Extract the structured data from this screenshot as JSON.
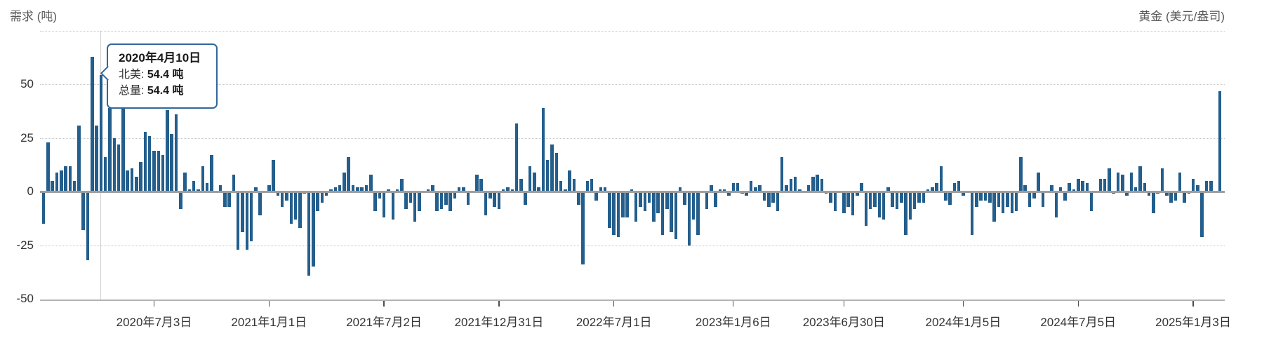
{
  "header": {
    "left_axis_title": "需求 (吨)",
    "right_axis_title": "黄金 (美元/盎司)"
  },
  "tooltip": {
    "date": "2020年4月10日",
    "series_label": "北美: ",
    "series_value": "54.4 吨",
    "total_label": "总量: ",
    "total_value": "54.4 吨"
  },
  "colors": {
    "bar": "#235e8c",
    "tooltip_border": "#33669a",
    "gridline": "#c8c8c8",
    "zero_line": "#9e9e9e",
    "hover_line": "#d2d2d2",
    "axis_title_text": "#58595b",
    "tick_text": "#333333"
  },
  "chart_data": {
    "type": "bar",
    "title": "",
    "ylabel": "需求 (吨)",
    "ylabel_right": "黄金 (美元/盎司)",
    "unit": "吨",
    "x_unit": "week",
    "ylim": [
      -50,
      75
    ],
    "grid": "dotted-horizontal",
    "legend_position": "none",
    "y_ticks": [
      {
        "label": "50",
        "value": 50
      },
      {
        "label": "25",
        "value": 25
      },
      {
        "label": "0",
        "value": 0
      },
      {
        "label": "-25",
        "value": -25
      },
      {
        "label": "-50",
        "value": -50
      }
    ],
    "gridline_values": [
      75,
      50,
      25,
      -25
    ],
    "x_ticks": [
      {
        "label": "2020年7月3日",
        "week_index": 25
      },
      {
        "label": "2021年1月1日",
        "week_index": 51
      },
      {
        "label": "2021年7月2日",
        "week_index": 77
      },
      {
        "label": "2021年12月31日",
        "week_index": 103
      },
      {
        "label": "2022年7月1日",
        "week_index": 129
      },
      {
        "label": "2023年1月6日",
        "week_index": 156
      },
      {
        "label": "2023年6月30日",
        "week_index": 181
      },
      {
        "label": "2024年1月5日",
        "week_index": 208
      },
      {
        "label": "2024年7月5日",
        "week_index": 234
      },
      {
        "label": "2025年1月3日",
        "week_index": 260
      }
    ],
    "highlight_index": 13,
    "highlight": {
      "date": "2020年4月10日",
      "series": "北美",
      "value": 54.4,
      "total": 54.4
    },
    "values": [
      -15,
      23,
      5,
      9,
      10,
      12,
      12,
      5,
      31,
      -18,
      -32,
      63,
      31,
      54.4,
      16,
      39,
      25,
      22,
      40,
      10,
      11,
      7,
      14,
      28,
      26,
      19,
      19,
      17,
      38,
      27,
      36,
      -8,
      9,
      1,
      5,
      1,
      12,
      4,
      17,
      0,
      3,
      -7,
      -7,
      8,
      -27,
      -19,
      -27,
      -23,
      2,
      -11,
      0,
      3,
      15,
      -2,
      -7,
      -4,
      -15,
      -13,
      -17,
      -1,
      -39,
      -35,
      -9,
      -5,
      -2,
      1,
      2,
      3,
      9,
      16,
      3,
      2,
      2,
      3,
      8,
      -9,
      -3,
      -12,
      1,
      -13,
      1,
      6,
      -8,
      -5,
      -14,
      -9,
      0,
      1,
      3,
      -9,
      -8,
      -6,
      -9,
      -3,
      2,
      2,
      -6,
      0,
      8,
      6,
      -11,
      -3,
      -7,
      -8,
      1,
      2,
      1,
      32,
      6,
      -6,
      12,
      9,
      2,
      39,
      15,
      22,
      18,
      5,
      1,
      10,
      6,
      -6,
      -34,
      5,
      6,
      -4,
      2,
      2,
      -17,
      -20,
      -21,
      -12,
      -12,
      1,
      -14,
      -7,
      -9,
      -5,
      -14,
      -10,
      -20,
      -8,
      -19,
      -22,
      2,
      -6,
      -25,
      -13,
      -20,
      0,
      -8,
      3,
      -7,
      1,
      1,
      -2,
      4,
      4,
      -1,
      -2,
      5,
      2,
      3,
      -4,
      -7,
      -5,
      -9,
      16,
      3,
      6,
      7,
      1,
      0,
      3,
      7,
      8,
      6,
      -1,
      -5,
      -9,
      0,
      -10,
      -7,
      -11,
      -2,
      4,
      -16,
      -8,
      -7,
      -12,
      -13,
      2,
      -7,
      -8,
      -5,
      -20,
      -13,
      -8,
      -5,
      -5,
      1,
      2,
      4,
      12,
      -4,
      -6,
      4,
      5,
      -2,
      0,
      -20,
      -7,
      -4,
      -4,
      -5,
      -14,
      -7,
      -10,
      -7,
      -10,
      -9,
      16,
      3,
      -7,
      -3,
      9,
      -7,
      0,
      3,
      -12,
      2,
      -4,
      4,
      1,
      6,
      5,
      4,
      -9,
      0,
      6,
      6,
      11,
      -1,
      9,
      8,
      -2,
      9,
      2,
      12,
      4,
      -2,
      -10,
      -1,
      11,
      -2,
      -5,
      -4,
      9,
      -5,
      -1,
      6,
      3,
      -21,
      5,
      5,
      0,
      47
    ]
  }
}
